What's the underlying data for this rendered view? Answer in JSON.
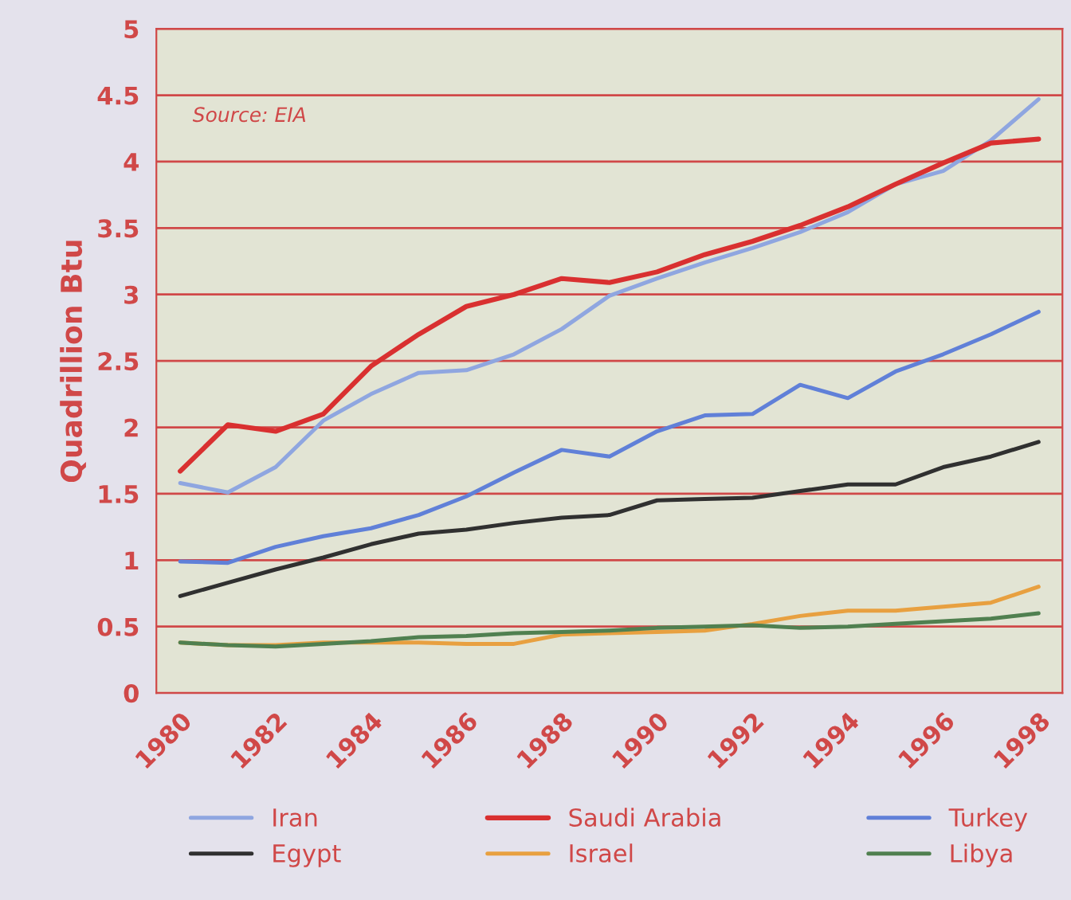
{
  "chart_data": {
    "type": "line",
    "ylabel": "Quadrillion Btu",
    "annotations": [
      "Source: EIA"
    ],
    "x": [
      1980,
      1981,
      1982,
      1983,
      1984,
      1985,
      1986,
      1987,
      1988,
      1989,
      1990,
      1991,
      1992,
      1993,
      1994,
      1995,
      1996,
      1997,
      1998
    ],
    "xlim": [
      1979.5,
      1998.5
    ],
    "xticks": [
      1980,
      1982,
      1984,
      1986,
      1988,
      1990,
      1992,
      1994,
      1996,
      1998
    ],
    "ylim": [
      0,
      5
    ],
    "yticks": [
      0,
      0.5,
      1,
      1.5,
      2,
      2.5,
      3,
      3.5,
      4,
      4.5,
      5
    ],
    "grid": "y",
    "legend": "bottom",
    "marker": "none",
    "line_style": "solid",
    "series": [
      {
        "name": "Iran",
        "color": "#8fa6e0",
        "values": [
          1.58,
          1.51,
          1.7,
          2.05,
          2.25,
          2.41,
          2.43,
          2.55,
          2.74,
          2.99,
          3.12,
          3.24,
          3.35,
          3.47,
          3.62,
          3.83,
          3.93,
          4.16,
          4.47
        ]
      },
      {
        "name": "Saudi Arabia",
        "color": "#d93030",
        "values": [
          1.67,
          2.02,
          1.97,
          2.1,
          2.46,
          2.7,
          2.91,
          3.0,
          3.12,
          3.09,
          3.17,
          3.3,
          3.4,
          3.52,
          3.66,
          3.83,
          3.99,
          4.14,
          4.17
        ]
      },
      {
        "name": "Turkey",
        "color": "#6080d8",
        "values": [
          0.99,
          0.98,
          1.1,
          1.18,
          1.24,
          1.34,
          1.48,
          1.66,
          1.83,
          1.78,
          1.97,
          2.09,
          2.1,
          2.32,
          2.22,
          2.42,
          2.55,
          2.7,
          2.87
        ]
      },
      {
        "name": "Egypt",
        "color": "#303030",
        "values": [
          0.73,
          0.83,
          0.93,
          1.02,
          1.12,
          1.2,
          1.23,
          1.28,
          1.32,
          1.34,
          1.45,
          1.46,
          1.47,
          1.52,
          1.57,
          1.57,
          1.7,
          1.78,
          1.89
        ]
      },
      {
        "name": "Israel",
        "color": "#e8a040",
        "values": [
          0.38,
          0.36,
          0.36,
          0.38,
          0.38,
          0.38,
          0.37,
          0.37,
          0.44,
          0.45,
          0.46,
          0.47,
          0.52,
          0.58,
          0.62,
          0.62,
          0.65,
          0.68,
          0.8
        ]
      },
      {
        "name": "Libya",
        "color": "#508050",
        "values": [
          0.38,
          0.36,
          0.35,
          0.37,
          0.39,
          0.42,
          0.43,
          0.45,
          0.46,
          0.47,
          0.49,
          0.5,
          0.51,
          0.49,
          0.5,
          0.52,
          0.54,
          0.56,
          0.6
        ]
      }
    ]
  }
}
